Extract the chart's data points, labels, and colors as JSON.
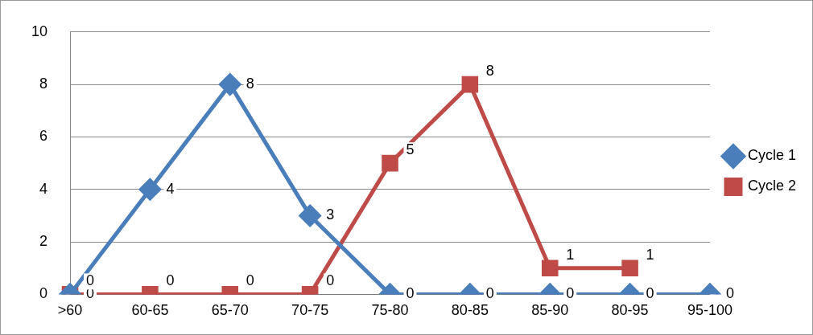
{
  "chart_data": {
    "type": "line",
    "categories": [
      ">60",
      "60-65",
      "65-70",
      "70-75",
      "75-80",
      "80-85",
      "85-90",
      "80-95",
      "95-100"
    ],
    "series": [
      {
        "name": "Cycle 1",
        "color": "#4a7ebb",
        "marker": "diamond",
        "values": [
          0,
          4,
          8,
          3,
          0,
          0,
          0,
          0,
          0
        ]
      },
      {
        "name": "Cycle 2",
        "color": "#be4b48",
        "marker": "square",
        "values": [
          0,
          0,
          0,
          0,
          5,
          8,
          1,
          1,
          null
        ]
      }
    ],
    "ylim": [
      0,
      10
    ],
    "yticks": [
      0,
      2,
      4,
      6,
      8,
      10
    ],
    "grid": "y",
    "legend": "right",
    "data_labels": true
  }
}
